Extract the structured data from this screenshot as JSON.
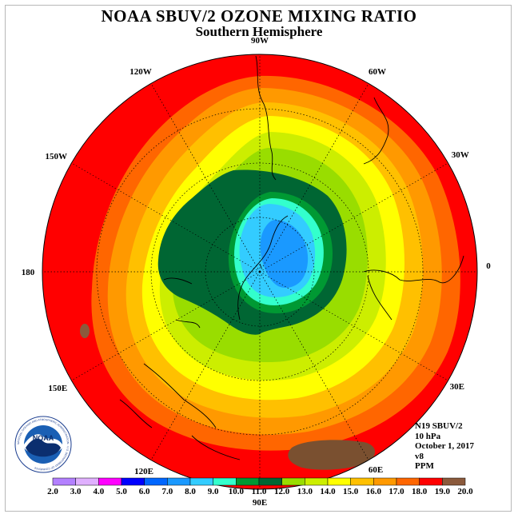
{
  "header": {
    "title": "NOAA SBUV/2 OZONE MIXING RATIO",
    "subtitle": "Southern Hemisphere"
  },
  "map": {
    "projection": "south-polar-stereographic",
    "longitude_labels": [
      {
        "text": "0",
        "lon": 0
      },
      {
        "text": "30E",
        "lon": 30
      },
      {
        "text": "60E",
        "lon": 60
      },
      {
        "text": "90E",
        "lon": 90
      },
      {
        "text": "120E",
        "lon": 120
      },
      {
        "text": "150E",
        "lon": 150
      },
      {
        "text": "180",
        "lon": 180
      },
      {
        "text": "150W",
        "lon": -150
      },
      {
        "text": "120W",
        "lon": -120
      },
      {
        "text": "90W",
        "lon": -90
      },
      {
        "text": "60W",
        "lon": -60
      },
      {
        "text": "30W",
        "lon": -30
      }
    ],
    "field_bands_ppm": [
      {
        "value": 18.5,
        "color": "#ff0000"
      },
      {
        "value": 17.5,
        "color": "#ff6600"
      },
      {
        "value": 16.5,
        "color": "#ff9900"
      },
      {
        "value": 15.5,
        "color": "#ffc000"
      },
      {
        "value": 14.5,
        "color": "#ffff00"
      },
      {
        "value": 13.5,
        "color": "#ccee00"
      },
      {
        "value": 12.5,
        "color": "#99dd00"
      },
      {
        "value": 11.5,
        "color": "#006633"
      },
      {
        "value": 10.5,
        "color": "#009933"
      },
      {
        "value": 9.5,
        "color": "#33ffcc"
      },
      {
        "value": 8.5,
        "color": "#33ccff"
      },
      {
        "value": 7.5,
        "color": "#1a99ff"
      }
    ]
  },
  "info": {
    "satellite": "N19 SBUV/2",
    "level": "10 hPa",
    "date": "October 1, 2017",
    "version": "v8",
    "units": "PPM"
  },
  "colorbar": {
    "ticks": [
      "2.0",
      "3.0",
      "4.0",
      "5.0",
      "6.0",
      "7.0",
      "8.0",
      "9.0",
      "10.0",
      "11.0",
      "12.0",
      "13.0",
      "14.0",
      "15.0",
      "16.0",
      "17.0",
      "18.0",
      "19.0",
      "20.0"
    ],
    "colors": [
      "#b380ff",
      "#e0b0ff",
      "#ff00ff",
      "#0000ff",
      "#0066ff",
      "#1a99ff",
      "#33ccff",
      "#33ffcc",
      "#009933",
      "#006633",
      "#99dd00",
      "#ccee00",
      "#ffff00",
      "#ffc000",
      "#ff9900",
      "#ff6600",
      "#ff0000",
      "#8b5a3c"
    ]
  },
  "logo": {
    "text": "NOAA",
    "ring_text": "NATIONAL OCEANIC AND ATMOSPHERIC ADMINISTRATION · U.S. DEPARTMENT OF COMMERCE"
  }
}
